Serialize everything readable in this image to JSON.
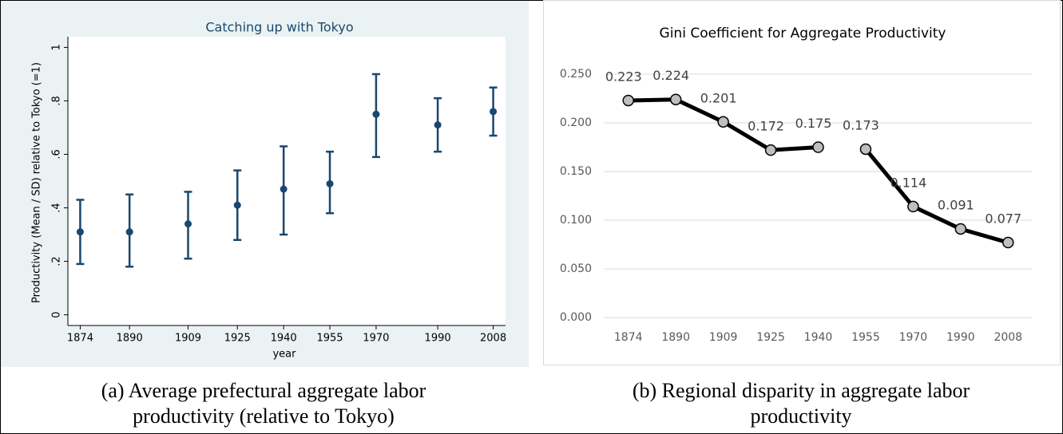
{
  "chart_data": [
    {
      "type": "errorbar",
      "title": "Catching up with Tokyo",
      "x_label": "year",
      "y_label": "Productivity (Mean / SD) relative to Tokyo (=1)",
      "x": [
        1874,
        1890,
        1909,
        1925,
        1940,
        1955,
        1970,
        1990,
        2008
      ],
      "values": [
        0.31,
        0.31,
        0.34,
        0.41,
        0.47,
        0.49,
        0.75,
        0.71,
        0.76
      ],
      "lower": [
        0.19,
        0.18,
        0.21,
        0.28,
        0.3,
        0.38,
        0.59,
        0.61,
        0.67
      ],
      "upper": [
        0.43,
        0.45,
        0.46,
        0.54,
        0.63,
        0.61,
        0.9,
        0.81,
        0.85
      ],
      "color": "#1a476f",
      "xlim": [
        1870,
        2012
      ],
      "xticks": [
        1874,
        1890,
        1909,
        1925,
        1940,
        1955,
        1970,
        1990,
        2008
      ],
      "ylim": [
        -0.04,
        1.04
      ],
      "yticks": [
        0,
        {
          "value": 0.2,
          "label": ".2"
        },
        {
          "value": 0.4,
          "label": ".4"
        },
        {
          "value": 0.6,
          "label": ".6"
        },
        {
          "value": 0.8,
          "label": ".8"
        },
        1
      ]
    },
    {
      "type": "line",
      "title": "Gini Coefficient for Aggregate Productivity",
      "categories": [
        "1874",
        "1890",
        "1909",
        "1925",
        "1940",
        "1955",
        "1970",
        "1990",
        "2008"
      ],
      "series": [
        {
          "color": "#000000",
          "values": [
            0.223,
            0.224,
            0.201,
            0.172,
            0.175,
            null,
            null,
            null,
            null
          ]
        },
        {
          "color": "#000000",
          "values": [
            null,
            null,
            null,
            null,
            null,
            0.173,
            0.114,
            0.091,
            0.077
          ]
        }
      ],
      "ylim": [
        0,
        0.25
      ],
      "yticks": [
        {
          "value": 0,
          "label": "0.000"
        },
        {
          "value": 0.05,
          "label": "0.050"
        },
        {
          "value": 0.1,
          "label": "0.100"
        },
        {
          "value": 0.15,
          "label": "0.150"
        },
        {
          "value": 0.2,
          "label": "0.200"
        },
        {
          "value": 0.25,
          "label": "0.250"
        }
      ],
      "grid": true
    }
  ],
  "captions": [
    [
      "(a) Average prefectural aggregate labor",
      "productivity (relative to Tokyo)"
    ],
    [
      "(b) Regional disparity in aggregate labor",
      "productivity"
    ]
  ]
}
